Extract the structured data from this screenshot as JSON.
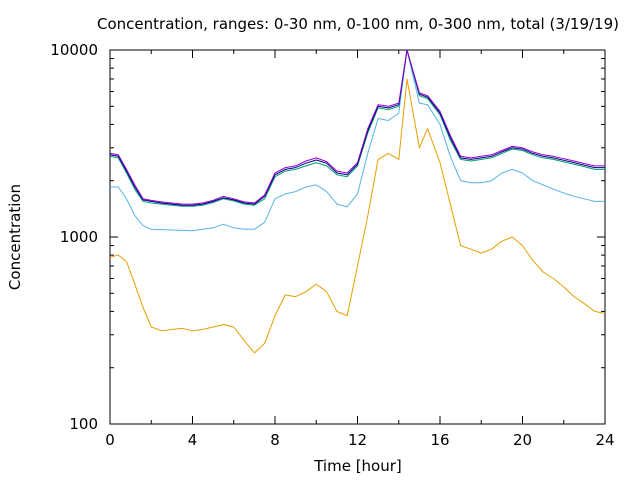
{
  "chart_data": {
    "type": "line",
    "title": "Concentration, ranges: 0-30 nm, 0-100 nm, 0-300 nm, total (3/19/19)",
    "xlabel": "Time [hour]",
    "ylabel": "Concentration",
    "xlim": [
      0,
      24
    ],
    "ylim": [
      100,
      10000
    ],
    "yscale": "log",
    "grid": false,
    "legend": "none",
    "x_ticks": [
      0,
      4,
      8,
      12,
      16,
      20,
      24
    ],
    "x_tick_labels": [
      "0",
      "4",
      "8",
      "12",
      "16",
      "20",
      "24"
    ],
    "y_ticks": [
      100,
      1000,
      10000
    ],
    "y_tick_labels": [
      "100",
      "1000",
      "10000"
    ],
    "series": [
      {
        "color": "#e69f00",
        "x": [
          0,
          0.4,
          0.8,
          1.2,
          1.6,
          2.0,
          2.5,
          3.0,
          3.5,
          4.0,
          4.5,
          5.0,
          5.5,
          6.0,
          6.5,
          7.0,
          7.5,
          8.0,
          8.5,
          9.0,
          9.5,
          10.0,
          10.5,
          11.0,
          11.5,
          12.0,
          12.5,
          13.0,
          13.5,
          14.0,
          14.4,
          15.0,
          15.4,
          16.0,
          16.5,
          17.0,
          17.5,
          18.0,
          18.5,
          19.0,
          19.5,
          20.0,
          20.5,
          21.0,
          21.5,
          22.0,
          22.5,
          23.0,
          23.5,
          24.0
        ],
        "y": [
          780,
          800,
          740,
          560,
          420,
          330,
          315,
          320,
          325,
          315,
          320,
          330,
          340,
          330,
          280,
          240,
          270,
          380,
          490,
          480,
          510,
          560,
          510,
          400,
          380,
          700,
          1300,
          2600,
          2800,
          2600,
          7000,
          3000,
          3800,
          2500,
          1500,
          900,
          860,
          820,
          860,
          950,
          1000,
          900,
          750,
          650,
          600,
          540,
          480,
          440,
          400,
          390
        ]
      },
      {
        "color": "#56b4e9",
        "x": [
          0,
          0.4,
          0.8,
          1.2,
          1.6,
          2.0,
          2.5,
          3.0,
          3.5,
          4.0,
          4.5,
          5.0,
          5.5,
          6.0,
          6.5,
          7.0,
          7.5,
          8.0,
          8.5,
          9.0,
          9.5,
          10.0,
          10.5,
          11.0,
          11.5,
          12.0,
          12.5,
          13.0,
          13.5,
          14.0,
          14.4,
          15.0,
          15.4,
          16.0,
          16.5,
          17.0,
          17.5,
          18.0,
          18.5,
          19.0,
          19.5,
          20.0,
          20.5,
          21.0,
          21.5,
          22.0,
          22.5,
          23.0,
          23.5,
          24.0
        ],
        "y": [
          1850,
          1850,
          1600,
          1300,
          1150,
          1100,
          1095,
          1090,
          1085,
          1080,
          1100,
          1120,
          1170,
          1120,
          1100,
          1100,
          1200,
          1600,
          1700,
          1750,
          1850,
          1900,
          1750,
          1500,
          1450,
          1700,
          2800,
          4300,
          4200,
          4600,
          10000,
          5200,
          5100,
          4000,
          2700,
          2000,
          1950,
          1950,
          2000,
          2200,
          2300,
          2200,
          2000,
          1900,
          1800,
          1720,
          1650,
          1600,
          1550,
          1550
        ]
      },
      {
        "color": "#009e73",
        "x": [
          0,
          0.4,
          0.8,
          1.2,
          1.6,
          2.0,
          2.5,
          3.0,
          3.5,
          4.0,
          4.5,
          5.0,
          5.5,
          6.0,
          6.5,
          7.0,
          7.5,
          8.0,
          8.5,
          9.0,
          9.5,
          10.0,
          10.5,
          11.0,
          11.5,
          12.0,
          12.5,
          13.0,
          13.5,
          14.0,
          14.4,
          15.0,
          15.4,
          16.0,
          16.5,
          17.0,
          17.5,
          18.0,
          18.5,
          19.0,
          19.5,
          20.0,
          20.5,
          21.0,
          21.5,
          22.0,
          22.5,
          23.0,
          23.5,
          24.0
        ],
        "y": [
          2700,
          2650,
          2200,
          1800,
          1550,
          1520,
          1500,
          1480,
          1460,
          1460,
          1480,
          1530,
          1600,
          1560,
          1500,
          1480,
          1600,
          2100,
          2250,
          2300,
          2400,
          2500,
          2400,
          2150,
          2100,
          2400,
          3600,
          4900,
          4800,
          5000,
          10000,
          5700,
          5500,
          4500,
          3300,
          2600,
          2550,
          2600,
          2650,
          2800,
          2950,
          2900,
          2750,
          2650,
          2600,
          2520,
          2450,
          2380,
          2300,
          2300
        ]
      },
      {
        "color": "#000080",
        "x": [
          0,
          0.4,
          0.8,
          1.2,
          1.6,
          2.0,
          2.5,
          3.0,
          3.5,
          4.0,
          4.5,
          5.0,
          5.5,
          6.0,
          6.5,
          7.0,
          7.5,
          8.0,
          8.5,
          9.0,
          9.5,
          10.0,
          10.5,
          11.0,
          11.5,
          12.0,
          12.5,
          13.0,
          13.5,
          14.0,
          14.4,
          15.0,
          15.4,
          16.0,
          16.5,
          17.0,
          17.5,
          18.0,
          18.5,
          19.0,
          19.5,
          20.0,
          20.5,
          21.0,
          21.5,
          22.0,
          22.5,
          23.0,
          23.5,
          24.0
        ],
        "y": [
          2750,
          2700,
          2250,
          1850,
          1580,
          1550,
          1520,
          1500,
          1480,
          1480,
          1500,
          1550,
          1620,
          1580,
          1520,
          1500,
          1650,
          2150,
          2300,
          2350,
          2480,
          2580,
          2480,
          2200,
          2150,
          2450,
          3700,
          5000,
          4900,
          5100,
          10000,
          5800,
          5600,
          4600,
          3400,
          2650,
          2600,
          2650,
          2700,
          2850,
          3000,
          2950,
          2800,
          2700,
          2650,
          2570,
          2500,
          2420,
          2350,
          2350
        ]
      },
      {
        "color": "#9400d3",
        "x": [
          0,
          0.4,
          0.8,
          1.2,
          1.6,
          2.0,
          2.5,
          3.0,
          3.5,
          4.0,
          4.5,
          5.0,
          5.5,
          6.0,
          6.5,
          7.0,
          7.5,
          8.0,
          8.5,
          9.0,
          9.5,
          10.0,
          10.5,
          11.0,
          11.5,
          12.0,
          12.5,
          13.0,
          13.5,
          14.0,
          14.4,
          15.0,
          15.4,
          16.0,
          16.5,
          17.0,
          17.5,
          18.0,
          18.5,
          19.0,
          19.5,
          20.0,
          20.5,
          21.0,
          21.5,
          22.0,
          22.5,
          23.0,
          23.5,
          24.0
        ],
        "y": [
          2800,
          2750,
          2300,
          1900,
          1600,
          1570,
          1540,
          1520,
          1500,
          1500,
          1520,
          1570,
          1650,
          1600,
          1540,
          1520,
          1680,
          2200,
          2350,
          2400,
          2550,
          2650,
          2530,
          2250,
          2200,
          2500,
          3800,
          5100,
          5000,
          5200,
          10000,
          5900,
          5700,
          4700,
          3500,
          2700,
          2650,
          2700,
          2750,
          2900,
          3050,
          3000,
          2850,
          2750,
          2700,
          2620,
          2550,
          2470,
          2400,
          2400
        ]
      }
    ]
  }
}
